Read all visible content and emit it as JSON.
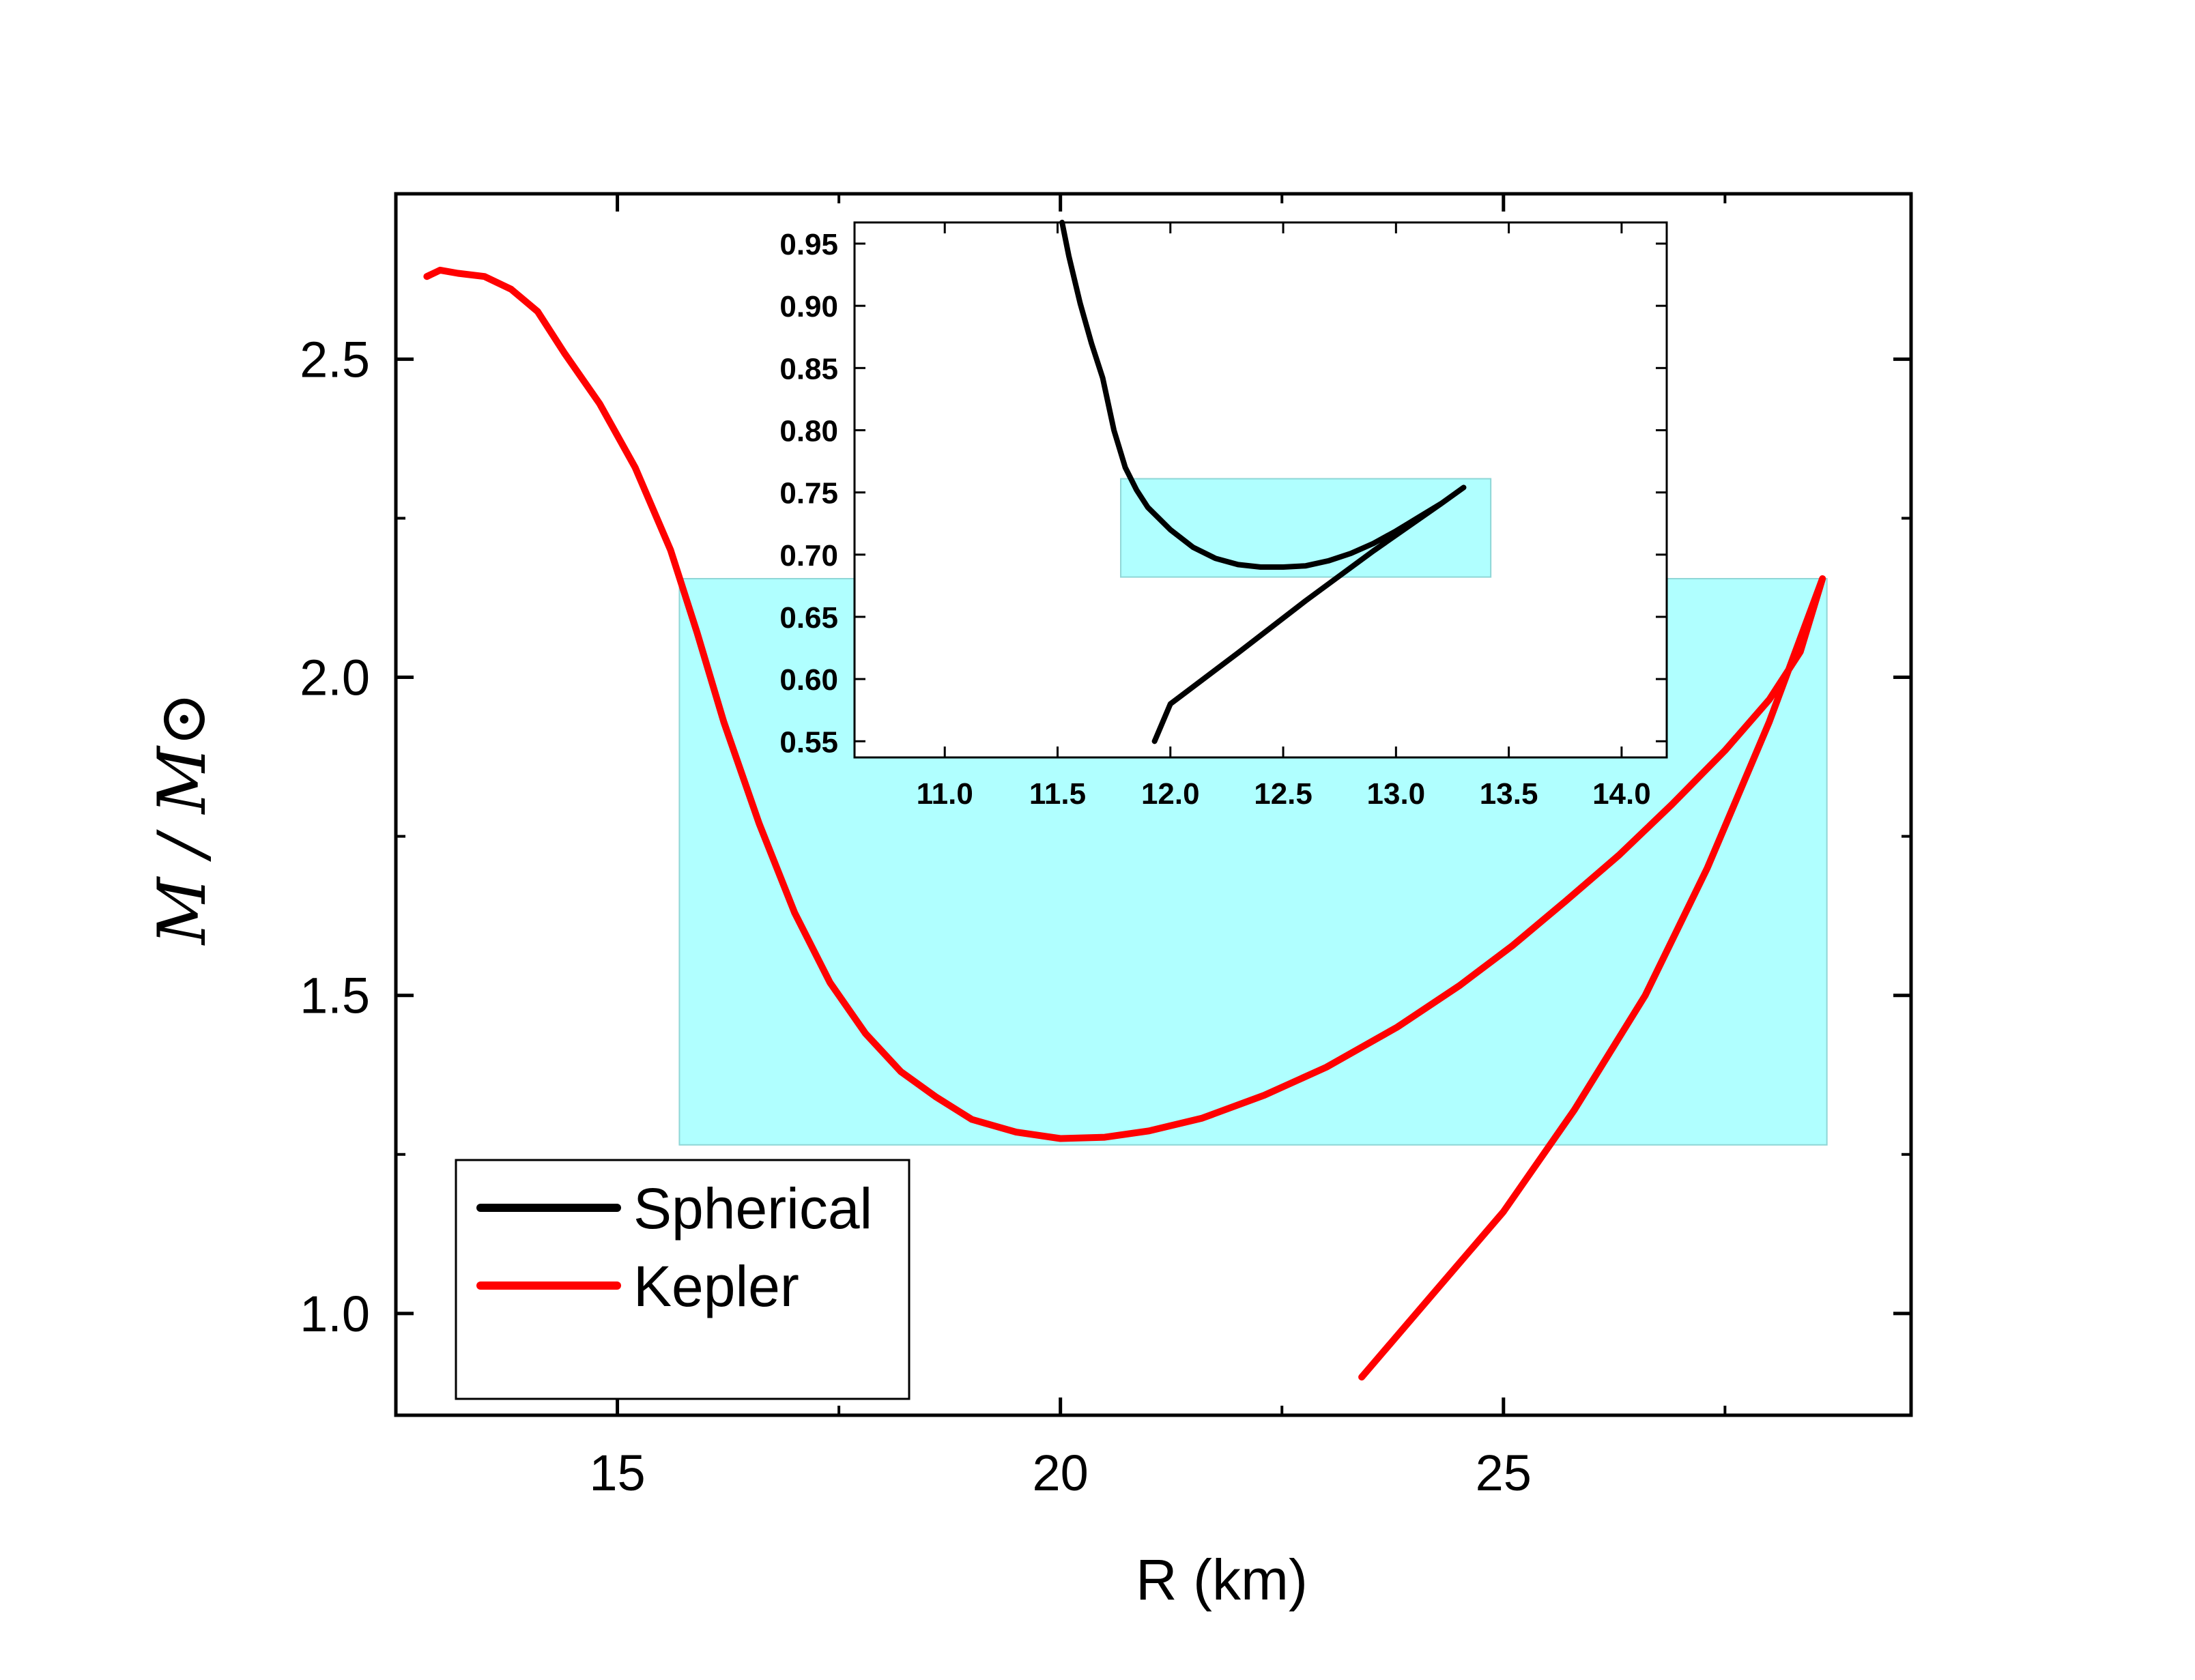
{
  "chart_data": [
    {
      "id": "main",
      "type": "line",
      "xlabel": "R (km)",
      "ylabel": "M / M⊙",
      "xlim": [
        12.5,
        29.6
      ],
      "ylim": [
        0.84,
        2.76
      ],
      "xticks": [
        15,
        20,
        25
      ],
      "xticks_minor": [
        12.5,
        17.5,
        22.5,
        27.5
      ],
      "yticks": [
        1.0,
        1.5,
        2.0,
        2.5
      ],
      "yticks_minor": [
        1.25,
        1.75,
        2.25
      ],
      "highlight_box": {
        "x": [
          15.7,
          28.65
        ],
        "y": [
          1.265,
          2.155
        ],
        "color": "#b0ffff"
      },
      "series": [
        {
          "name": "Kepler",
          "color": "#ff0000",
          "points": [
            [
              12.85,
              2.63
            ],
            [
              13.0,
              2.64
            ],
            [
              13.2,
              2.635
            ],
            [
              13.5,
              2.63
            ],
            [
              13.8,
              2.61
            ],
            [
              14.1,
              2.575
            ],
            [
              14.4,
              2.51
            ],
            [
              14.8,
              2.43
            ],
            [
              15.2,
              2.33
            ],
            [
              15.6,
              2.2
            ],
            [
              15.9,
              2.07
            ],
            [
              16.2,
              1.93
            ],
            [
              16.6,
              1.77
            ],
            [
              17.0,
              1.63
            ],
            [
              17.4,
              1.52
            ],
            [
              17.8,
              1.44
            ],
            [
              18.2,
              1.38
            ],
            [
              18.6,
              1.34
            ],
            [
              19.0,
              1.305
            ],
            [
              19.5,
              1.285
            ],
            [
              20.0,
              1.275
            ],
            [
              20.5,
              1.277
            ],
            [
              21.0,
              1.287
            ],
            [
              21.6,
              1.307
            ],
            [
              22.3,
              1.343
            ],
            [
              23.0,
              1.387
            ],
            [
              23.8,
              1.45
            ],
            [
              24.5,
              1.515
            ],
            [
              25.1,
              1.578
            ],
            [
              25.7,
              1.648
            ],
            [
              26.3,
              1.72
            ],
            [
              26.9,
              1.8
            ],
            [
              27.5,
              1.885
            ],
            [
              28.0,
              1.965
            ],
            [
              28.35,
              2.04
            ],
            [
              28.6,
              2.155
            ],
            [
              28.0,
              1.93
            ],
            [
              27.3,
              1.7
            ],
            [
              26.6,
              1.5
            ],
            [
              25.8,
              1.32
            ],
            [
              25.0,
              1.16
            ],
            [
              24.2,
              1.03
            ],
            [
              23.4,
              0.9
            ]
          ]
        }
      ],
      "legend": {
        "position": "lower-left",
        "entries": [
          {
            "label": "Spherical",
            "color": "#000000"
          },
          {
            "label": "Kepler",
            "color": "#ff0000"
          }
        ]
      }
    },
    {
      "id": "inset",
      "type": "line",
      "xlim": [
        10.6,
        14.2
      ],
      "ylim": [
        0.537,
        0.967
      ],
      "xticks": [
        11.0,
        11.5,
        12.0,
        12.5,
        13.0,
        13.5,
        14.0
      ],
      "yticks": [
        0.55,
        0.6,
        0.65,
        0.7,
        0.75,
        0.8,
        0.85,
        0.9,
        0.95
      ],
      "highlight_box": {
        "x": [
          11.78,
          13.42
        ],
        "y": [
          0.682,
          0.761
        ],
        "color": "#b0ffff"
      },
      "series": [
        {
          "name": "Spherical",
          "color": "#000000",
          "points": [
            [
              11.52,
              0.967
            ],
            [
              11.55,
              0.94
            ],
            [
              11.6,
              0.902
            ],
            [
              11.65,
              0.87
            ],
            [
              11.7,
              0.842
            ],
            [
              11.75,
              0.8
            ],
            [
              11.8,
              0.77
            ],
            [
              11.85,
              0.752
            ],
            [
              11.9,
              0.738
            ],
            [
              12.0,
              0.72
            ],
            [
              12.1,
              0.706
            ],
            [
              12.2,
              0.697
            ],
            [
              12.3,
              0.692
            ],
            [
              12.4,
              0.69
            ],
            [
              12.5,
              0.69
            ],
            [
              12.6,
              0.691
            ],
            [
              12.7,
              0.695
            ],
            [
              12.8,
              0.701
            ],
            [
              12.9,
              0.709
            ],
            [
              13.0,
              0.719
            ],
            [
              13.1,
              0.73
            ],
            [
              13.2,
              0.741
            ],
            [
              13.3,
              0.754
            ],
            [
              13.2,
              0.741
            ],
            [
              12.9,
              0.703
            ],
            [
              12.6,
              0.663
            ],
            [
              12.3,
              0.621
            ],
            [
              12.0,
              0.58
            ],
            [
              11.93,
              0.55
            ]
          ]
        }
      ]
    }
  ]
}
